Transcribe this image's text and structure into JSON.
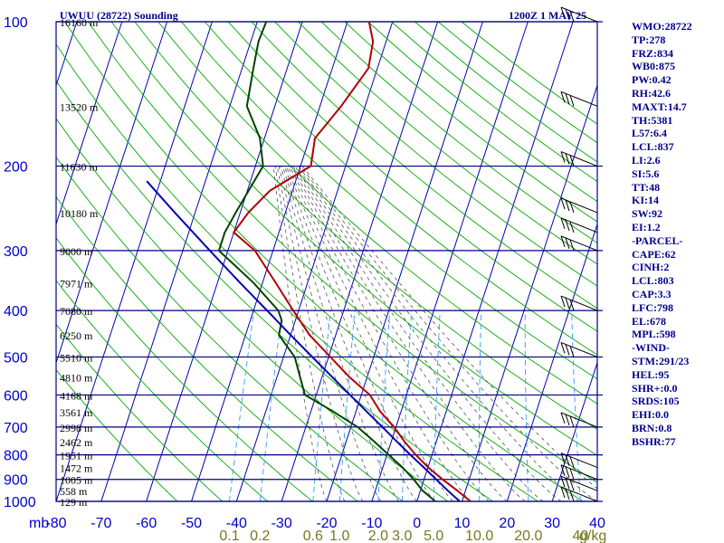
{
  "chart_data": {
    "type": "skew-t sounding",
    "title": "UWUU (28722) Sounding",
    "valid_time": "1200Z  1 MAY 25",
    "xlabel": "mb",
    "pressure_levels": [
      100,
      200,
      300,
      400,
      500,
      600,
      700,
      800,
      900,
      1000
    ],
    "temperature_ticks": [
      -80,
      -70,
      -60,
      -50,
      -40,
      -30,
      -20,
      -10,
      0,
      10,
      20,
      30,
      40
    ],
    "mixing_ratio_label": "g/kg",
    "mixing_ratio_ticks": [
      "0.1",
      "0.2",
      "0.6",
      "1.0",
      "2.0",
      "3.0",
      "5.0",
      "10.0",
      "20.0",
      "40"
    ],
    "height_labels": [
      {
        "p": 100,
        "label": "16160 m"
      },
      {
        "p": 150,
        "label": "13520 m"
      },
      {
        "p": 200,
        "label": "11630 m"
      },
      {
        "p": 250,
        "label": "10180 m"
      },
      {
        "p": 300,
        "label": "9000 m"
      },
      {
        "p": 350,
        "label": "7971 m"
      },
      {
        "p": 400,
        "label": "7080 m"
      },
      {
        "p": 450,
        "label": "6250 m"
      },
      {
        "p": 500,
        "label": "5510 m"
      },
      {
        "p": 550,
        "label": "4810 m"
      },
      {
        "p": 600,
        "label": "4168 m"
      },
      {
        "p": 650,
        "label": "3561 m"
      },
      {
        "p": 700,
        "label": "2998 m"
      },
      {
        "p": 750,
        "label": "2462 m"
      },
      {
        "p": 800,
        "label": "1951 m"
      },
      {
        "p": 850,
        "label": "1472 m"
      },
      {
        "p": 900,
        "label": "1005 m"
      },
      {
        "p": 950,
        "label": "558 m"
      },
      {
        "p": 1000,
        "label": "129 m"
      }
    ],
    "series": [
      {
        "name": "Temperature",
        "color": "#b00000",
        "points": [
          [
            1000,
            11.9
          ],
          [
            950,
            8.2
          ],
          [
            900,
            4.1
          ],
          [
            850,
            0.1
          ],
          [
            800,
            -3.6
          ],
          [
            750,
            -7.1
          ],
          [
            700,
            -10.4
          ],
          [
            650,
            -14.6
          ],
          [
            600,
            -18.1
          ],
          [
            550,
            -24.0
          ],
          [
            500,
            -29.6
          ],
          [
            450,
            -35.8
          ],
          [
            400,
            -41.2
          ],
          [
            350,
            -47.1
          ],
          [
            300,
            -54.0
          ],
          [
            275,
            -60.0
          ],
          [
            250,
            -58.2
          ],
          [
            225,
            -55.0
          ],
          [
            200,
            -47.7
          ],
          [
            175,
            -48.8
          ],
          [
            150,
            -45.3
          ],
          [
            125,
            -42.0
          ],
          [
            110,
            -42.9
          ],
          [
            100,
            -45.2
          ]
        ]
      },
      {
        "name": "Dew Point",
        "color": "#004400",
        "points": [
          [
            1000,
            4.1
          ],
          [
            950,
            0.5
          ],
          [
            900,
            -2.3
          ],
          [
            850,
            -5.6
          ],
          [
            800,
            -9.6
          ],
          [
            750,
            -13.8
          ],
          [
            700,
            -18.5
          ],
          [
            650,
            -25.0
          ],
          [
            600,
            -32.5
          ],
          [
            550,
            -34.9
          ],
          [
            500,
            -37.5
          ],
          [
            450,
            -42.6
          ],
          [
            420,
            -43.0
          ],
          [
            400,
            -44.5
          ],
          [
            350,
            -52.0
          ],
          [
            300,
            -62.0
          ],
          [
            275,
            -62.0
          ],
          [
            250,
            -61.0
          ],
          [
            200,
            -58.3
          ],
          [
            175,
            -61.0
          ],
          [
            150,
            -66.2
          ],
          [
            125,
            -67.5
          ],
          [
            110,
            -68.3
          ],
          [
            100,
            -68.0
          ]
        ]
      },
      {
        "name": "Parcel",
        "color": "#0000b0",
        "points": [
          [
            1000,
            9.5
          ],
          [
            950,
            6.1
          ],
          [
            900,
            2.7
          ],
          [
            850,
            -0.9
          ],
          [
            800,
            -4.8
          ],
          [
            750,
            -8.8
          ],
          [
            700,
            -13.0
          ],
          [
            650,
            -17.6
          ],
          [
            600,
            -22.5
          ],
          [
            550,
            -27.8
          ],
          [
            500,
            -33.6
          ],
          [
            450,
            -40.0
          ],
          [
            400,
            -47.0
          ],
          [
            350,
            -55.0
          ],
          [
            300,
            -64.0
          ],
          [
            250,
            -74.5
          ],
          [
            215,
            -83.0
          ]
        ]
      }
    ],
    "wind_barbs_pressures": [
      1000,
      950,
      900,
      850,
      700,
      500,
      400,
      300,
      275,
      250,
      200,
      150,
      100
    ]
  },
  "indices": [
    "WMO:28722",
    "TP:278",
    "FRZ:834",
    "WB0:875",
    "PW:0.42",
    "RH:42.6",
    "MAXT:14.7",
    "TH:5381",
    "L57:6.4",
    "LCL:837",
    "LI:2.6",
    "SI:5.6",
    "TT:48",
    "KI:14",
    "SW:92",
    "EI:1.2",
    "-PARCEL-",
    "CAPE:62",
    "CINH:2",
    "LCL:803",
    "CAP:3.3",
    "LFC:798",
    "EL:678",
    "MPL:598",
    "-WIND-",
    "STM:291/23",
    "HEL:95",
    "SHR+:0.0",
    "SRDS:105",
    "EHI:0.0",
    "BRN:0.8",
    "BSHR:77"
  ],
  "colors": {
    "isobar": "#000080",
    "isotherm": "#0000b0",
    "dry_adiabat": "#00aa00",
    "moist_adiabat": "#555555",
    "mixing_ratio": "#3399ff",
    "axis_text": "#0000cc",
    "mixing_text": "#777722",
    "title_text": "#00008b"
  }
}
